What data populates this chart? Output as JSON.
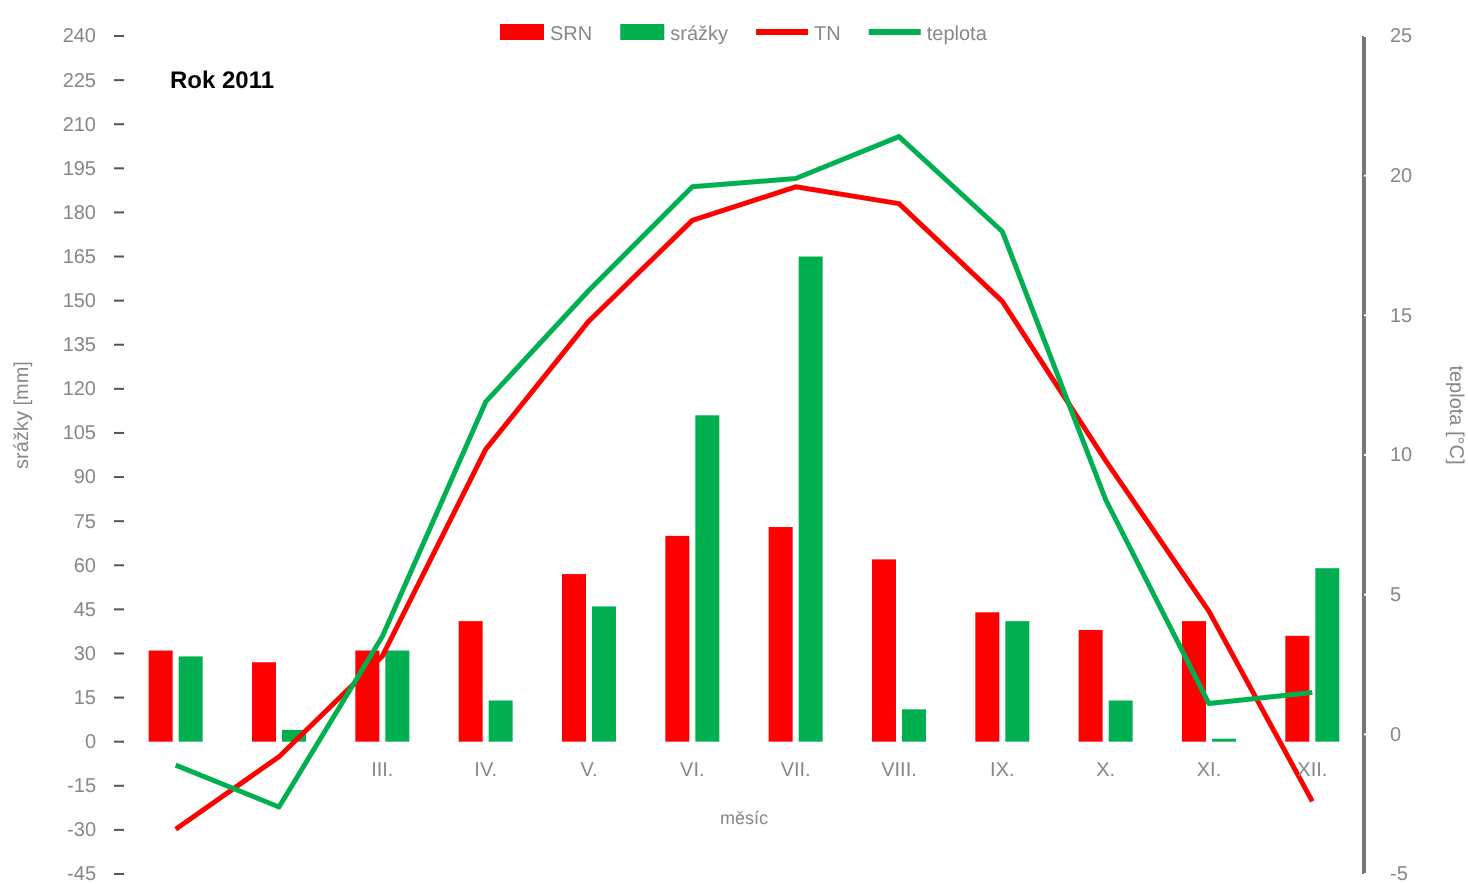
{
  "chart_data": {
    "type": "bar",
    "title": "Rok 2011",
    "xlabel": "měsíc",
    "ylabel": "srážky [mm]",
    "y2label": "teplota [°C]",
    "categories": [
      null,
      null,
      "III.",
      "IV.",
      "V.",
      "VI.",
      "VII.",
      "VIII.",
      "IX.",
      "X.",
      "XI.",
      "XII."
    ],
    "series": [
      {
        "name": "SRN",
        "color": "#ff0000",
        "values": [
          31,
          27,
          31,
          41,
          57,
          70,
          73,
          62,
          44,
          38,
          41,
          36
        ]
      },
      {
        "name": "srážky",
        "color": "#00b050",
        "values": [
          29,
          4,
          31,
          14,
          46,
          111,
          165,
          11,
          41,
          14,
          1,
          59
        ]
      },
      {
        "name": "TN",
        "type": "line",
        "axis": "y2",
        "color": "#ff0000",
        "values": [
          -3.4,
          -0.8,
          2.8,
          10.2,
          14.8,
          18.4,
          19.6,
          19.0,
          15.5,
          9.8,
          4.4,
          -2.4
        ]
      },
      {
        "name": "teplota",
        "type": "line",
        "axis": "y2",
        "color": "#00b050",
        "values": [
          -1.1,
          -2.6,
          3.5,
          11.9,
          15.9,
          19.6,
          19.9,
          21.4,
          18.0,
          8.4,
          1.1,
          1.5
        ]
      }
    ],
    "ylim": [
      -45,
      240
    ],
    "yticks": [
      -45,
      -30,
      -15,
      0,
      15,
      30,
      45,
      60,
      75,
      90,
      105,
      120,
      135,
      150,
      165,
      180,
      195,
      210,
      225,
      240
    ],
    "y2lim": [
      -5,
      25
    ],
    "y2ticks": [
      -5,
      0,
      5,
      10,
      15,
      20,
      25
    ],
    "legend": "top",
    "grid": false,
    "marker": "none",
    "line_style": "solid"
  }
}
